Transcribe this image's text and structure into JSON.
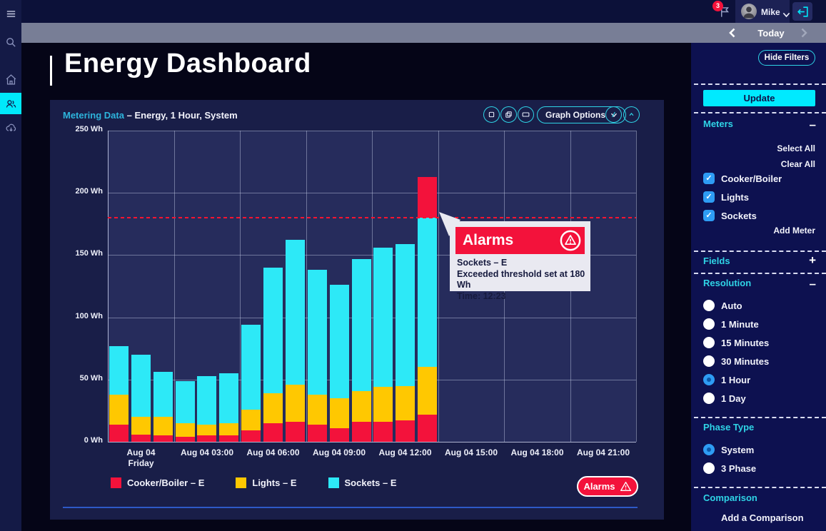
{
  "top_bar": {
    "notification_count": "3",
    "user_name": "Mike"
  },
  "date_nav": {
    "label": "Today"
  },
  "page": {
    "title": "Energy Dashboard"
  },
  "chart_card": {
    "title_link": "Metering Data",
    "title_sep": "–",
    "title_text": "Energy, 1 Hour, System",
    "graph_options_label": "Graph Options",
    "alarms_button_label": "Alarms",
    "tooltip": {
      "title": "Alarms",
      "meter": "Sockets – E",
      "message": "Exceeded threshold set at 180 Wh",
      "time": "Time: 12:23"
    }
  },
  "chart_data": {
    "type": "bar",
    "stacked": true,
    "title": "Energy, 1 Hour, System",
    "y_unit": "Wh",
    "ylim": [
      0,
      250
    ],
    "yticks": [
      "250 Wh",
      "200 Wh",
      "150 Wh",
      "100 Wh",
      "50 Wh",
      "0 Wh"
    ],
    "grid": true,
    "threshold_wh": 180,
    "threshold_color": "#ff1430",
    "categories": [
      "00:00",
      "01:00",
      "02:00",
      "03:00",
      "04:00",
      "05:00",
      "06:00",
      "07:00",
      "08:00",
      "09:00",
      "10:00",
      "11:00",
      "12:00",
      "13:00",
      "14:00"
    ],
    "series": [
      {
        "name": "Cooker/Boiler – E",
        "color": "#f3123b",
        "values": [
          14,
          6,
          5,
          4,
          5,
          5,
          9,
          15,
          16,
          14,
          11,
          16,
          16,
          17,
          22
        ]
      },
      {
        "name": "Lights – E",
        "color": "#ffc801",
        "values": [
          24,
          14,
          15,
          11,
          9,
          10,
          17,
          24,
          30,
          24,
          24,
          25,
          28,
          28,
          38
        ]
      },
      {
        "name": "Sockets – E",
        "color": "#2de9f7",
        "values": [
          39,
          50,
          36,
          34,
          39,
          40,
          68,
          101,
          116,
          100,
          91,
          106,
          112,
          114,
          120
        ]
      },
      {
        "name": "Sockets – E (over threshold alarm)",
        "color": "#f3123b",
        "values": [
          0,
          0,
          0,
          0,
          0,
          0,
          0,
          0,
          0,
          0,
          0,
          0,
          0,
          0,
          33
        ]
      }
    ],
    "totals": [
      77,
      70,
      56,
      49,
      53,
      55,
      94,
      140,
      162,
      138,
      126,
      147,
      156,
      159,
      213
    ],
    "xticks": [
      {
        "line1": "Aug 04",
        "line2": "Friday"
      },
      {
        "line1": "Aug 04 03:00"
      },
      {
        "line1": "Aug 04 06:00"
      },
      {
        "line1": "Aug 04 09:00"
      },
      {
        "line1": "Aug 04 12:00"
      },
      {
        "line1": "Aug 04 15:00"
      },
      {
        "line1": "Aug 04 18:00"
      },
      {
        "line1": "Aug 04 21:00"
      }
    ],
    "legend": [
      {
        "label": "Cooker/Boiler – E",
        "color": "#f3123b"
      },
      {
        "label": "Lights – E",
        "color": "#ffc801"
      },
      {
        "label": "Sockets – E",
        "color": "#2de9f7"
      }
    ],
    "legend_position": "bottom"
  },
  "filters": {
    "hide_filters_label": "Hide Filters",
    "update_label": "Update",
    "sections": {
      "meters": {
        "title": "Meters",
        "collapse_glyph": "–",
        "select_all": "Select All",
        "clear_all": "Clear All",
        "items": [
          {
            "label": "Cooker/Boiler",
            "checked": true
          },
          {
            "label": "Lights",
            "checked": true
          },
          {
            "label": "Sockets",
            "checked": true
          }
        ],
        "add_label": "Add Meter"
      },
      "fields": {
        "title": "Fields",
        "collapse_glyph": "+"
      },
      "resolution": {
        "title": "Resolution",
        "collapse_glyph": "–",
        "options": [
          {
            "label": "Auto",
            "selected": false
          },
          {
            "label": "1 Minute",
            "selected": false
          },
          {
            "label": "15 Minutes",
            "selected": false
          },
          {
            "label": "30 Minutes",
            "selected": false
          },
          {
            "label": "1 Hour",
            "selected": true
          },
          {
            "label": "1 Day",
            "selected": false
          }
        ]
      },
      "phase_type": {
        "title": "Phase Type",
        "options": [
          {
            "label": "System",
            "selected": true
          },
          {
            "label": "3 Phase",
            "selected": false
          }
        ]
      },
      "comparison": {
        "title": "Comparison",
        "add_label": "Add a Comparison"
      }
    }
  },
  "colors": {
    "accent_cyan": "#00e9fb",
    "section_header_cyan": "#2fd4e6",
    "alarm_red": "#f3123b",
    "card_bg": "#191e48",
    "panel_bg": "#0d1150"
  },
  "icons": [
    "hamburger-icon",
    "search-icon",
    "home-icon",
    "users-icon",
    "cloud-download-icon",
    "flag-icon",
    "logout-icon",
    "chevron-left-icon",
    "chevron-right-icon",
    "chevron-down-icon",
    "chevron-up-icon",
    "warning-triangle-icon",
    "square-view-icon",
    "stacked-view-icon",
    "wide-view-icon",
    "edit-slash-icon",
    "minus-icon",
    "plus-icon"
  ]
}
